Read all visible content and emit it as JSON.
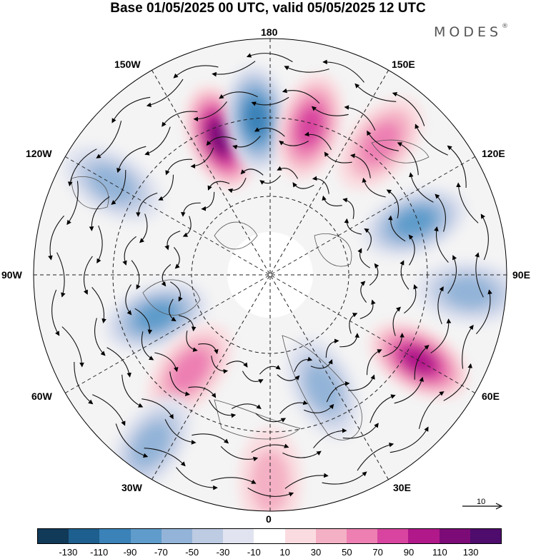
{
  "title": "Base 01/05/2025 00 UTC, valid 05/05/2025 12 UTC",
  "brand": {
    "name": "MODES",
    "mark": "®"
  },
  "map": {
    "projection": "north-polar-stereographic",
    "longitude_labels": {
      "top": "180",
      "top_left": "150W",
      "top_right": "150E",
      "upper_left": "120W",
      "upper_right": "120E",
      "left": "90W",
      "right": "90E",
      "lower_left": "60W",
      "lower_right": "60E",
      "bottom_left": "30W",
      "bottom_right": "30E",
      "bottom": "0"
    },
    "graticule": {
      "latitude_circles": "dashed",
      "meridians": "dashed"
    }
  },
  "vector_reference": {
    "value": "10"
  },
  "colorbar": {
    "ticks": [
      "-130",
      "-110",
      "-90",
      "-70",
      "-50",
      "-30",
      "-10",
      "10",
      "30",
      "50",
      "70",
      "90",
      "110",
      "130"
    ],
    "colors": [
      "#113a59",
      "#1d5f8e",
      "#3a82b8",
      "#5f9ccb",
      "#93b4d8",
      "#bdcbe3",
      "#e1e4f0",
      "#ffffff",
      "#fadce0",
      "#f4b0c4",
      "#ed7fb3",
      "#d8449f",
      "#b1188a",
      "#7c0b78",
      "#4e0c6d"
    ]
  },
  "chart_data": {
    "type": "heatmap",
    "title": "Base 01/05/2025 00 UTC, valid 05/05/2025 12 UTC",
    "color_levels": [
      -130,
      -110,
      -90,
      -70,
      -50,
      -30,
      -10,
      10,
      30,
      50,
      70,
      90,
      110,
      130
    ],
    "anomaly_centers": [
      {
        "lon_label": "160W",
        "sign": "positive",
        "peak": 120
      },
      {
        "lon_label": "175W",
        "sign": "negative",
        "peak": -100
      },
      {
        "lon_label": "165E",
        "sign": "positive",
        "peak": 80
      },
      {
        "lon_label": "140E",
        "sign": "positive",
        "peak": 50
      },
      {
        "lon_label": "120W",
        "sign": "negative",
        "peak": -50
      },
      {
        "lon_label": "110E",
        "sign": "negative",
        "peak": -70
      },
      {
        "lon_label": "85E",
        "sign": "negative",
        "peak": -60
      },
      {
        "lon_label": "70W",
        "sign": "negative",
        "peak": -80
      },
      {
        "lon_label": "60E",
        "sign": "positive",
        "peak": 100
      },
      {
        "lon_label": "40W",
        "sign": "positive",
        "peak": 60
      },
      {
        "lon_label": "25E",
        "sign": "negative",
        "peak": -60
      },
      {
        "lon_label": "35W",
        "sign": "negative",
        "peak": -60
      },
      {
        "lon_label": "0",
        "sign": "positive",
        "peak": 40
      }
    ]
  }
}
